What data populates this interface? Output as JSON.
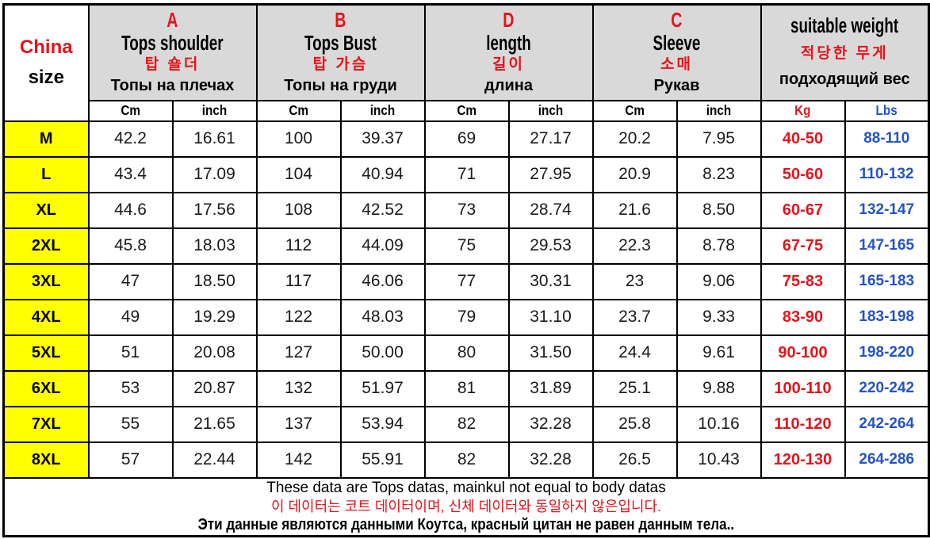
{
  "header": {
    "corner": {
      "line1": "China",
      "line2": "size"
    },
    "columns": [
      {
        "letter": "A",
        "en": "Tops shoulder",
        "ko": "탑 숄더",
        "ru": "Топы на плечах"
      },
      {
        "letter": "B",
        "en": "Tops Bust",
        "ko": "탑 가슴",
        "ru": "Топы на груди"
      },
      {
        "letter": "D",
        "en": "length",
        "ko": "길이",
        "ru": "длина"
      },
      {
        "letter": "C",
        "en": "Sleeve",
        "ko": "소매",
        "ru": "Рукав"
      },
      {
        "letter": "",
        "en": "suitable weight",
        "ko": "적당한 무게",
        "ru": "подходящий вес"
      }
    ],
    "units": [
      "Cm",
      "inch",
      "Cm",
      "inch",
      "Cm",
      "inch",
      "Cm",
      "inch",
      "Kg",
      "Lbs"
    ]
  },
  "rows": [
    {
      "size": "M",
      "values": [
        "42.2",
        "16.61",
        "100",
        "39.37",
        "69",
        "27.17",
        "20.2",
        "7.95",
        "40-50",
        "88-110"
      ]
    },
    {
      "size": "L",
      "values": [
        "43.4",
        "17.09",
        "104",
        "40.94",
        "71",
        "27.95",
        "20.9",
        "8.23",
        "50-60",
        "110-132"
      ]
    },
    {
      "size": "XL",
      "values": [
        "44.6",
        "17.56",
        "108",
        "42.52",
        "73",
        "28.74",
        "21.6",
        "8.50",
        "60-67",
        "132-147"
      ]
    },
    {
      "size": "2XL",
      "values": [
        "45.8",
        "18.03",
        "112",
        "44.09",
        "75",
        "29.53",
        "22.3",
        "8.78",
        "67-75",
        "147-165"
      ]
    },
    {
      "size": "3XL",
      "values": [
        "47",
        "18.50",
        "117",
        "46.06",
        "77",
        "30.31",
        "23",
        "9.06",
        "75-83",
        "165-183"
      ]
    },
    {
      "size": "4XL",
      "values": [
        "49",
        "19.29",
        "122",
        "48.03",
        "79",
        "31.10",
        "23.7",
        "9.33",
        "83-90",
        "183-198"
      ]
    },
    {
      "size": "5XL",
      "values": [
        "51",
        "20.08",
        "127",
        "50.00",
        "80",
        "31.50",
        "24.4",
        "9.61",
        "90-100",
        "198-220"
      ]
    },
    {
      "size": "6XL",
      "values": [
        "53",
        "20.87",
        "132",
        "51.97",
        "81",
        "31.89",
        "25.1",
        "9.88",
        "100-110",
        "220-242"
      ]
    },
    {
      "size": "7XL",
      "values": [
        "55",
        "21.65",
        "137",
        "53.94",
        "82",
        "32.28",
        "25.8",
        "10.16",
        "110-120",
        "242-264"
      ]
    },
    {
      "size": "8XL",
      "values": [
        "57",
        "22.44",
        "142",
        "55.91",
        "82",
        "32.28",
        "26.5",
        "10.43",
        "120-130",
        "264-286"
      ]
    }
  ],
  "notes": {
    "en": "These data are Tops datas, mainkul not equal to body datas",
    "ko": "이 데이터는 코트 데이터이며, 신체 데이터와 동일하지 않은입니다.",
    "ru": "Эти данные являются данными Коутса, красный цитан не равен данным тела.."
  },
  "colors": {
    "header_bg": "#d9d9d9",
    "size_col_bg": "#ffff00",
    "accent_red": "#e8121a",
    "accent_blue": "#2453c6",
    "border": "#000000"
  }
}
